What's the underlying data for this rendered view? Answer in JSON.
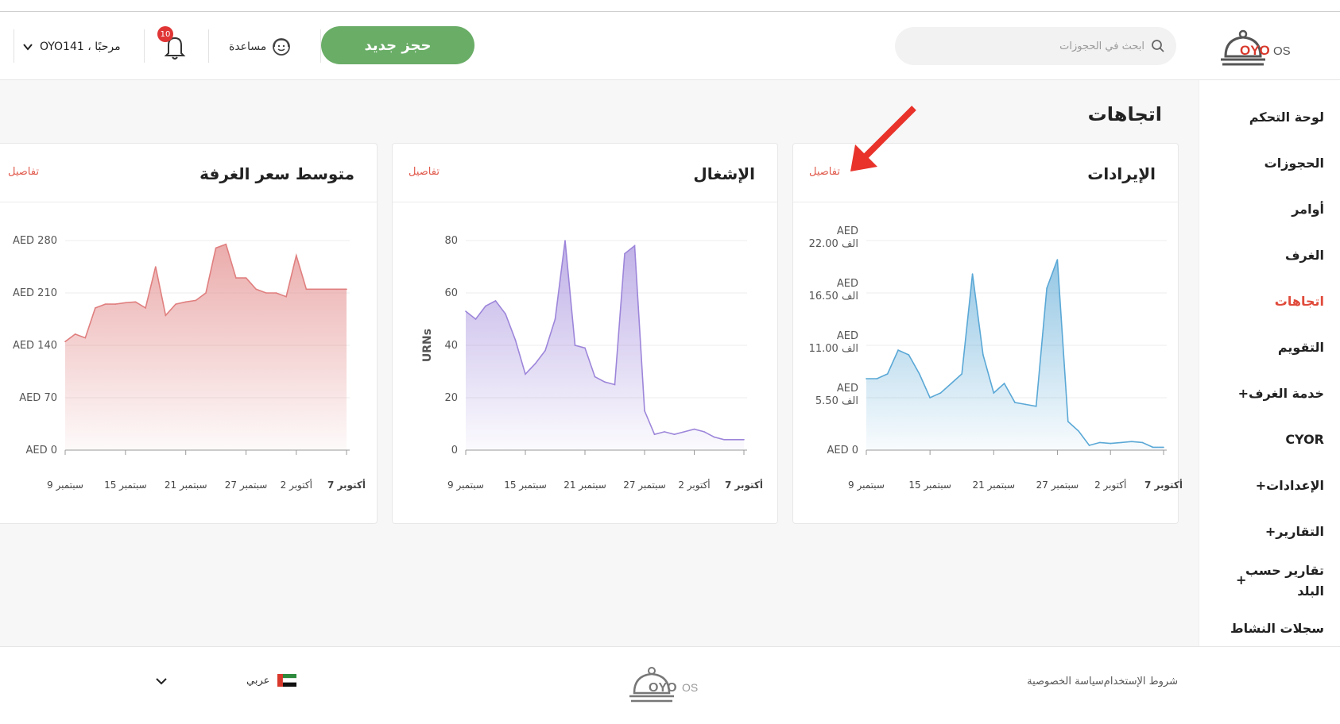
{
  "header": {
    "brand": "OYO OS",
    "search_placeholder": "ابحث في الحجوزات",
    "new_booking": "حجز جديد",
    "help": "مساعدة",
    "notification_count": "10",
    "greeting": "مرحبًا ، OYO141",
    "icons": [
      "search-icon",
      "help-icon",
      "bell-icon",
      "chevron-down-icon"
    ]
  },
  "sidebar": {
    "items": [
      {
        "label": "لوحة التحكم"
      },
      {
        "label": "الحجوزات"
      },
      {
        "label": "أوامر"
      },
      {
        "label": "الغرف"
      },
      {
        "label": "اتجاهات",
        "active": true
      },
      {
        "label": "التقويم"
      },
      {
        "label": "خدمة الغرف+"
      },
      {
        "label": "CYOR"
      },
      {
        "label": "الإعدادات+"
      },
      {
        "label": "التقارير+"
      },
      {
        "label": "تقارير حسب البلد",
        "expandable": "+"
      },
      {
        "label": "سجلات النشاط"
      }
    ]
  },
  "page": {
    "title": "اتجاهات",
    "details_label": "تفاصيل"
  },
  "colors": {
    "accent": "#e04a3a",
    "primary_button": "#6aad67",
    "revenue": "#5aa8d6",
    "occupancy": "#9d86da",
    "arr": "#e07f7f",
    "annotation_arrow": "#e8322a"
  },
  "chart_data": [
    {
      "type": "area",
      "title": "الإيرادات",
      "ylim": [
        0,
        22
      ],
      "yticks": [
        "AED 0",
        "AED 5.50 الف",
        "AED 11.00 الف",
        "AED 16.50 الف",
        "AED 22.00 الف"
      ],
      "xticks": [
        "سبتمبر 9",
        "سبتمبر 15",
        "سبتمبر 21",
        "سبتمبر 27",
        "أكتوبر 2",
        "أكتوبر 7"
      ],
      "x": [
        "9/9",
        "10/9",
        "11/9",
        "12/9",
        "13/9",
        "14/9",
        "15/9",
        "16/9",
        "17/9",
        "18/9",
        "19/9",
        "20/9",
        "21/9",
        "22/9",
        "23/9",
        "24/9",
        "25/9",
        "26/9",
        "27/9",
        "28/9",
        "29/9",
        "30/9",
        "1/10",
        "2/10",
        "3/10",
        "4/10",
        "5/10",
        "6/10",
        "7/10"
      ],
      "values": [
        7.5,
        7.5,
        8,
        10.5,
        10,
        8,
        5.5,
        6,
        7,
        8,
        18.5,
        10,
        6,
        7,
        5,
        4.8,
        4.6,
        17,
        20,
        3,
        2,
        0.5,
        0.8,
        0.7,
        0.8,
        0.9,
        0.8,
        0.3,
        0.3
      ],
      "grid": true
    },
    {
      "type": "area",
      "title": "الإشغال",
      "ylabel": "URNs",
      "ylim": [
        0,
        80
      ],
      "yticks": [
        "0",
        "20",
        "40",
        "60",
        "80"
      ],
      "xticks": [
        "سبتمبر 9",
        "سبتمبر 15",
        "سبتمبر 21",
        "سبتمبر 27",
        "أكتوبر 2",
        "أكتوبر 7"
      ],
      "x": [
        "9/9",
        "10/9",
        "11/9",
        "12/9",
        "13/9",
        "14/9",
        "15/9",
        "16/9",
        "17/9",
        "18/9",
        "19/9",
        "20/9",
        "21/9",
        "22/9",
        "23/9",
        "24/9",
        "25/9",
        "26/9",
        "27/9",
        "28/9",
        "29/9",
        "30/9",
        "1/10",
        "2/10",
        "3/10",
        "4/10",
        "5/10",
        "6/10",
        "7/10"
      ],
      "values": [
        53,
        50,
        55,
        57,
        52,
        42,
        29,
        33,
        38,
        50,
        80,
        40,
        39,
        28,
        26,
        25,
        75,
        78,
        15,
        6,
        7,
        6,
        7,
        8,
        7,
        5,
        4,
        4,
        4
      ],
      "grid": true
    },
    {
      "type": "area",
      "title": "متوسط سعر الغرفة",
      "ylim": [
        0,
        280
      ],
      "yticks": [
        "AED 0",
        "AED 70",
        "AED 140",
        "AED 210",
        "AED 280"
      ],
      "xticks": [
        "سبتمبر 9",
        "سبتمبر 15",
        "سبتمبر 21",
        "سبتمبر 27",
        "أكتوبر 2",
        "أكتوبر 7"
      ],
      "x": [
        "9/9",
        "10/9",
        "11/9",
        "12/9",
        "13/9",
        "14/9",
        "15/9",
        "16/9",
        "17/9",
        "18/9",
        "19/9",
        "20/9",
        "21/9",
        "22/9",
        "23/9",
        "24/9",
        "25/9",
        "26/9",
        "27/9",
        "28/9",
        "29/9",
        "30/9",
        "1/10",
        "2/10",
        "3/10",
        "4/10",
        "5/10",
        "6/10",
        "7/10"
      ],
      "values": [
        145,
        155,
        150,
        190,
        195,
        195,
        197,
        198,
        190,
        245,
        180,
        195,
        198,
        200,
        210,
        270,
        275,
        230,
        230,
        215,
        210,
        210,
        205,
        260,
        215,
        215,
        215,
        215,
        215
      ],
      "grid": true
    }
  ],
  "footer": {
    "terms": "شروط الإستخدام",
    "privacy": "سياسة الخصوصية",
    "language": "عربي",
    "brand": "OYO OS"
  }
}
